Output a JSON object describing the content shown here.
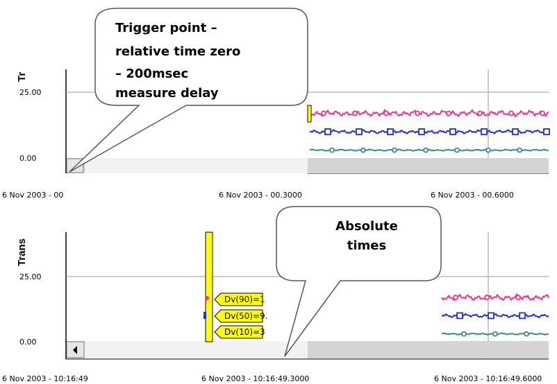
{
  "chart_data": [
    {
      "type": "line",
      "ylabel": "Tr",
      "yticks": [
        "25.00",
        "0.00"
      ],
      "ylim": [
        -5,
        45
      ],
      "x_ticks": [
        "6 Nov 2003 - 00",
        "6 Nov 2003 - 00.3000",
        "6 Nov 2003 - 00.6000"
      ],
      "series": [
        {
          "color": "#ff2d8c",
          "marker": "circle",
          "level": 17
        },
        {
          "color": "#1f2ee0",
          "marker": "square",
          "level": 10
        },
        {
          "color": "#3a8a8a",
          "marker": "circle",
          "level": 3
        }
      ],
      "callout": {
        "lines": [
          "Trigger point –",
          "relative time zero",
          "– 200msec",
          "measure delay"
        ]
      }
    },
    {
      "type": "line",
      "ylabel": "Trans",
      "yticks": [
        "25.00",
        "0.00"
      ],
      "ylim": [
        -5,
        45
      ],
      "x_ticks": [
        "6 Nov 2003 - 10:16:49",
        "6 Nov 2003 - 10:16:49.3000",
        "6 Nov 2003 - 10:16:49.6000"
      ],
      "series": [
        {
          "color": "#ff2d8c",
          "marker": "circle",
          "level": 17
        },
        {
          "color": "#1f2ee0",
          "marker": "square",
          "level": 10
        },
        {
          "color": "#3a8a8a",
          "marker": "circle",
          "level": 3
        }
      ],
      "cursor_labels": [
        "Dv(90)=1",
        "Dv(50)=9.",
        "Dv(10)=3"
      ],
      "callout": {
        "lines": [
          "Absolute",
          "times"
        ]
      }
    }
  ]
}
